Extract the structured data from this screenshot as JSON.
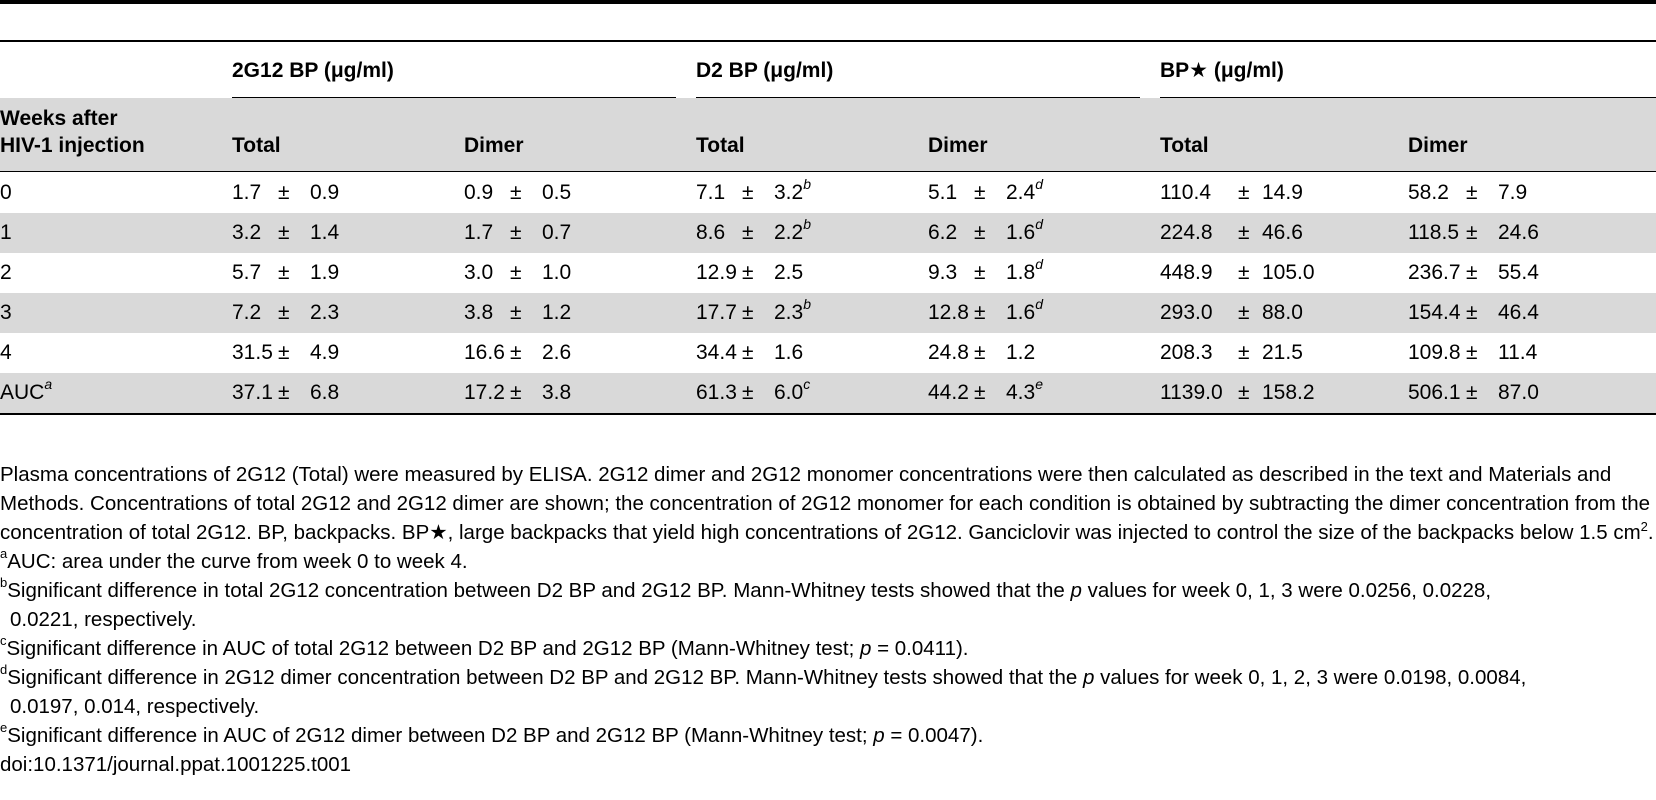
{
  "table": {
    "group_headers": [
      "2G12 BP (μg/ml)",
      "D2 BP (μg/ml)",
      "BP★ (μg/ml)"
    ],
    "row_header_line1": "Weeks after",
    "row_header_line2": "HIV-1 injection",
    "sub_headers": [
      "Total",
      "Dimer",
      "Total",
      "Dimer",
      "Total",
      "Dimer"
    ],
    "pm_symbol": "±",
    "rows": [
      {
        "label": "0",
        "label_sup": "",
        "cells": [
          {
            "v": "1.7",
            "e": "0.9",
            "s": ""
          },
          {
            "v": "0.9",
            "e": "0.5",
            "s": ""
          },
          {
            "v": "7.1",
            "e": "3.2",
            "s": "b"
          },
          {
            "v": "5.1",
            "e": "2.4",
            "s": "d"
          },
          {
            "v": "110.4",
            "e": "14.9",
            "s": ""
          },
          {
            "v": "58.2",
            "e": "7.9",
            "s": ""
          }
        ]
      },
      {
        "label": "1",
        "label_sup": "",
        "cells": [
          {
            "v": "3.2",
            "e": "1.4",
            "s": ""
          },
          {
            "v": "1.7",
            "e": "0.7",
            "s": ""
          },
          {
            "v": "8.6",
            "e": "2.2",
            "s": "b"
          },
          {
            "v": "6.2",
            "e": "1.6",
            "s": "d"
          },
          {
            "v": "224.8",
            "e": "46.6",
            "s": ""
          },
          {
            "v": "118.5",
            "e": "24.6",
            "s": ""
          }
        ]
      },
      {
        "label": "2",
        "label_sup": "",
        "cells": [
          {
            "v": "5.7",
            "e": "1.9",
            "s": ""
          },
          {
            "v": "3.0",
            "e": "1.0",
            "s": ""
          },
          {
            "v": "12.9",
            "e": "2.5",
            "s": ""
          },
          {
            "v": "9.3",
            "e": "1.8",
            "s": "d"
          },
          {
            "v": "448.9",
            "e": "105.0",
            "s": ""
          },
          {
            "v": "236.7",
            "e": "55.4",
            "s": ""
          }
        ]
      },
      {
        "label": "3",
        "label_sup": "",
        "cells": [
          {
            "v": "7.2",
            "e": "2.3",
            "s": ""
          },
          {
            "v": "3.8",
            "e": "1.2",
            "s": ""
          },
          {
            "v": "17.7",
            "e": "2.3",
            "s": "b"
          },
          {
            "v": "12.8",
            "e": "1.6",
            "s": "d"
          },
          {
            "v": "293.0",
            "e": "88.0",
            "s": ""
          },
          {
            "v": "154.4",
            "e": "46.4",
            "s": ""
          }
        ]
      },
      {
        "label": "4",
        "label_sup": "",
        "cells": [
          {
            "v": "31.5",
            "e": "4.9",
            "s": ""
          },
          {
            "v": "16.6",
            "e": "2.6",
            "s": ""
          },
          {
            "v": "34.4",
            "e": "1.6",
            "s": ""
          },
          {
            "v": "24.8",
            "e": "1.2",
            "s": ""
          },
          {
            "v": "208.3",
            "e": "21.5",
            "s": ""
          },
          {
            "v": "109.8",
            "e": "11.4",
            "s": ""
          }
        ]
      },
      {
        "label": "AUC",
        "label_sup": "a",
        "cells": [
          {
            "v": "37.1",
            "e": "6.8",
            "s": ""
          },
          {
            "v": "17.2",
            "e": "3.8",
            "s": ""
          },
          {
            "v": "61.3",
            "e": "6.0",
            "s": "c"
          },
          {
            "v": "44.2",
            "e": "4.3",
            "s": "e"
          },
          {
            "v": "1139.0",
            "e": "158.2",
            "s": ""
          },
          {
            "v": "506.1",
            "e": "87.0",
            "s": ""
          }
        ]
      }
    ]
  },
  "notes": {
    "caption_main": "Plasma concentrations of 2G12 (Total) were measured by ELISA. 2G12 dimer and 2G12 monomer concentrations were then calculated as described in the text and Materials and Methods. Concentrations of total 2G12 and 2G12 dimer are shown; the concentration of 2G12 monomer for each condition is obtained by subtracting the dimer concentration from the concentration of total 2G12. BP, backpacks. BP★, large backpacks that yield high concentrations of 2G12. Ganciclovir was injected to control the size of the backpacks below 1.5 cm",
    "caption_sup": "2",
    "caption_end": ".",
    "fn_a_mark": "a",
    "fn_a": "AUC: area under the curve from week 0 to week 4.",
    "fn_b_mark": "b",
    "fn_b_1": "Significant difference in total 2G12 concentration between D2 BP and 2G12 BP. Mann-Whitney tests showed that the ",
    "fn_b_p": "p",
    "fn_b_2": " values for week 0, 1, 3 were 0.0256, 0.0228,",
    "fn_b_3": "0.0221, respectively.",
    "fn_c_mark": "c",
    "fn_c_1": "Significant difference in AUC of total 2G12 between D2 BP and 2G12 BP (Mann-Whitney test; ",
    "fn_c_p": "p",
    "fn_c_2": " = 0.0411).",
    "fn_d_mark": "d",
    "fn_d_1": "Significant difference in 2G12 dimer concentration between D2 BP and 2G12 BP. Mann-Whitney tests showed that the ",
    "fn_d_p": "p",
    "fn_d_2": " values for week 0, 1, 2, 3 were 0.0198, 0.0084,",
    "fn_d_3": "0.0197, 0.014, respectively.",
    "fn_e_mark": "e",
    "fn_e_1": "Significant difference in AUC of 2G12 dimer between D2 BP and 2G12 BP (Mann-Whitney test; ",
    "fn_e_p": "p",
    "fn_e_2": " = 0.0047).",
    "doi": "doi:10.1371/journal.ppat.1001225.t001"
  }
}
